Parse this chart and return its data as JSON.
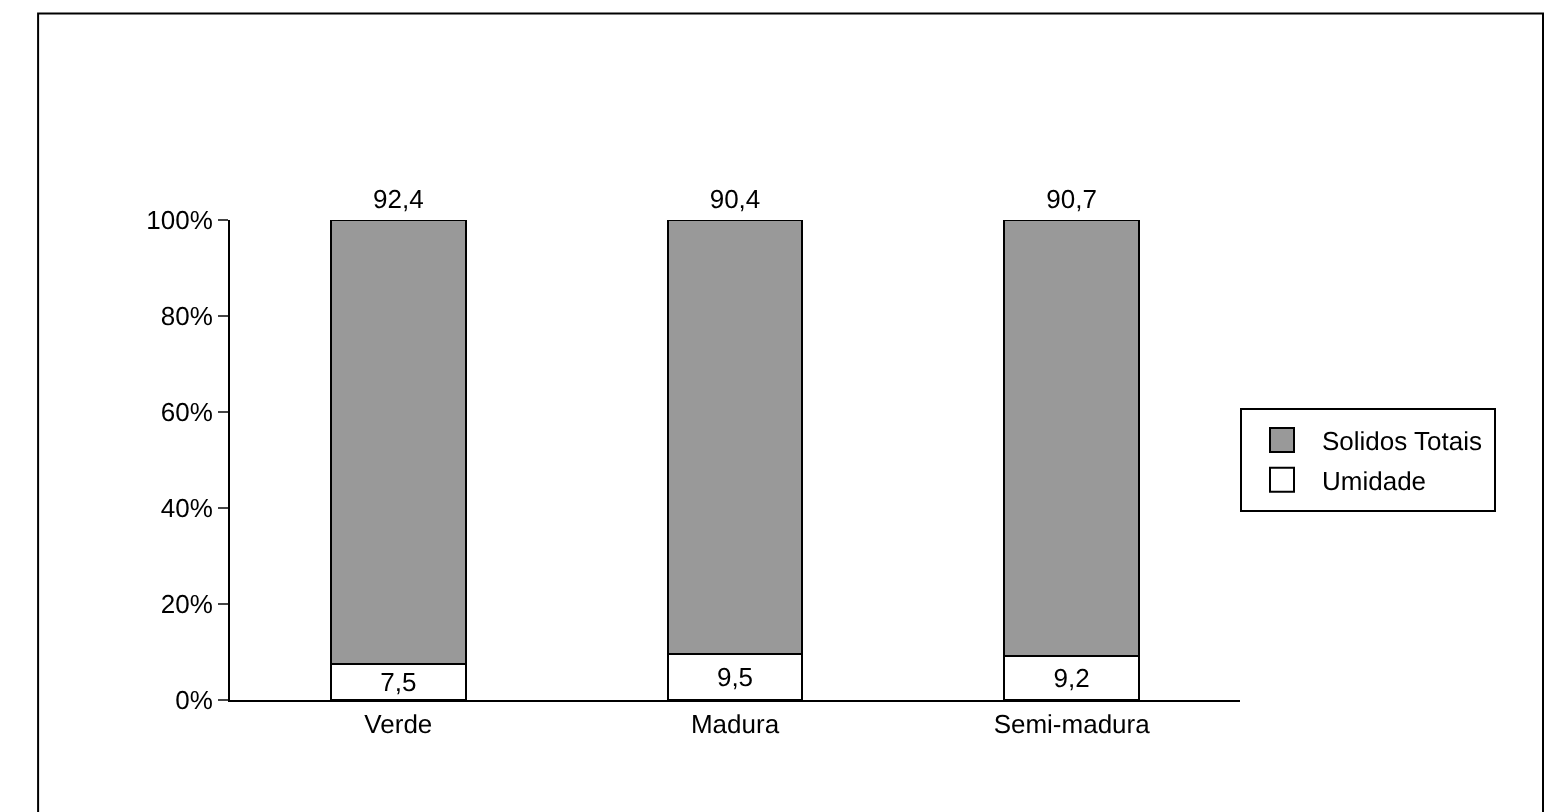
{
  "chart_data": {
    "type": "bar",
    "stacked": true,
    "categories": [
      "Verde",
      "Madura",
      "Semi-madura"
    ],
    "series": [
      {
        "name": "Umidade",
        "color": "#ffffff",
        "values": [
          7.5,
          9.5,
          9.2
        ],
        "value_labels": [
          "7,5",
          "9,5",
          "9,2"
        ]
      },
      {
        "name": "Solidos Totais",
        "color": "#999999",
        "values": [
          92.4,
          90.4,
          90.7
        ],
        "value_labels": [
          "92,4",
          "90,4",
          "90,7"
        ]
      }
    ],
    "ylim": [
      0,
      100
    ],
    "yticks": [
      {
        "value": 0,
        "label": "0%"
      },
      {
        "value": 20,
        "label": "20%"
      },
      {
        "value": 40,
        "label": "40%"
      },
      {
        "value": 60,
        "label": "60%"
      },
      {
        "value": 80,
        "label": "80%"
      },
      {
        "value": 100,
        "label": "100%"
      }
    ],
    "legend": "right"
  }
}
